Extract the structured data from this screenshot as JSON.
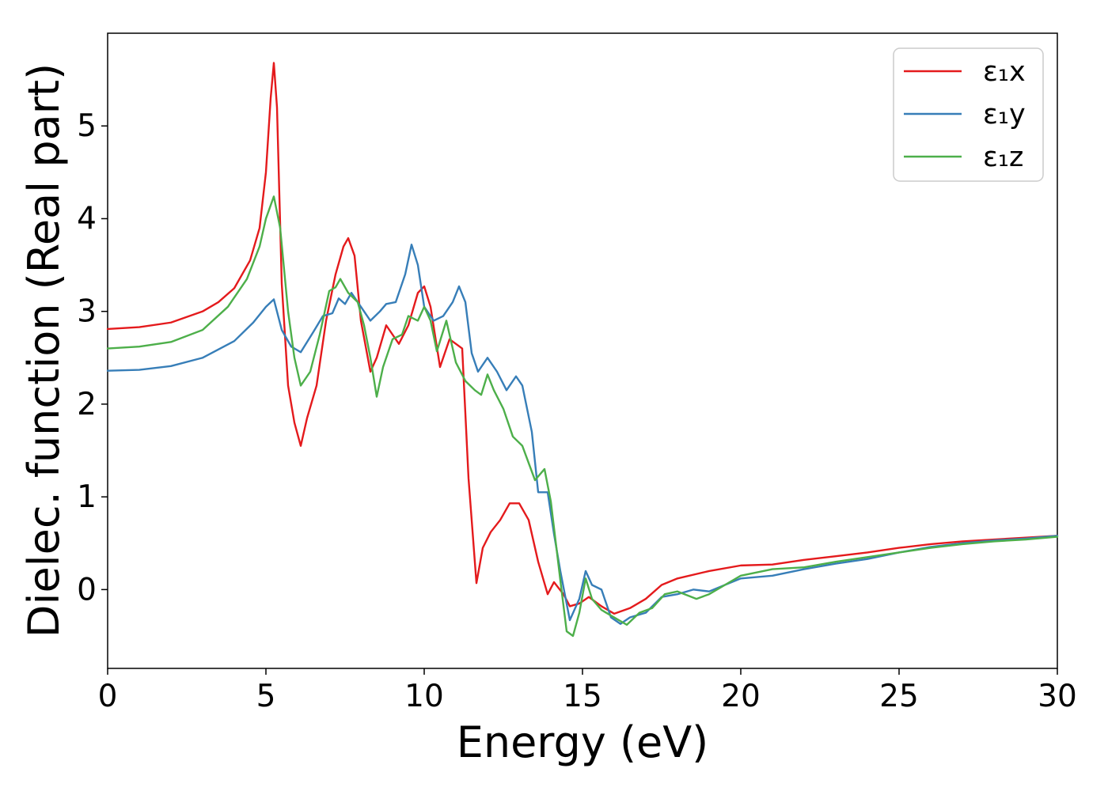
{
  "chart_data": {
    "type": "line",
    "title": "",
    "xlabel": "Energy (eV)",
    "ylabel": "Dielec. function (Real part)",
    "xlim": [
      0,
      30
    ],
    "ylim": [
      -0.85,
      6.0
    ],
    "xticks": [
      0,
      5,
      10,
      15,
      20,
      25,
      30
    ],
    "yticks": [
      0,
      1,
      2,
      3,
      4,
      5
    ],
    "grid": false,
    "legend_position": "top-right",
    "series": [
      {
        "name": "ε₁x",
        "color": "#e41a1c",
        "points": [
          [
            0,
            2.81
          ],
          [
            1,
            2.83
          ],
          [
            2,
            2.88
          ],
          [
            3,
            3.0
          ],
          [
            3.5,
            3.1
          ],
          [
            4,
            3.25
          ],
          [
            4.5,
            3.55
          ],
          [
            4.8,
            3.9
          ],
          [
            5.0,
            4.5
          ],
          [
            5.15,
            5.3
          ],
          [
            5.25,
            5.68
          ],
          [
            5.35,
            5.2
          ],
          [
            5.5,
            3.3
          ],
          [
            5.7,
            2.2
          ],
          [
            5.9,
            1.8
          ],
          [
            6.1,
            1.55
          ],
          [
            6.3,
            1.85
          ],
          [
            6.6,
            2.2
          ],
          [
            6.9,
            2.9
          ],
          [
            7.2,
            3.4
          ],
          [
            7.45,
            3.7
          ],
          [
            7.6,
            3.79
          ],
          [
            7.8,
            3.6
          ],
          [
            8.0,
            2.9
          ],
          [
            8.3,
            2.35
          ],
          [
            8.5,
            2.5
          ],
          [
            8.8,
            2.85
          ],
          [
            9.0,
            2.75
          ],
          [
            9.2,
            2.65
          ],
          [
            9.5,
            2.85
          ],
          [
            9.8,
            3.2
          ],
          [
            10.0,
            3.27
          ],
          [
            10.2,
            3.05
          ],
          [
            10.5,
            2.4
          ],
          [
            10.8,
            2.7
          ],
          [
            11.0,
            2.65
          ],
          [
            11.2,
            2.6
          ],
          [
            11.4,
            1.2
          ],
          [
            11.65,
            0.07
          ],
          [
            11.85,
            0.45
          ],
          [
            12.1,
            0.62
          ],
          [
            12.4,
            0.75
          ],
          [
            12.7,
            0.93
          ],
          [
            13.0,
            0.93
          ],
          [
            13.3,
            0.75
          ],
          [
            13.6,
            0.3
          ],
          [
            13.9,
            -0.05
          ],
          [
            14.1,
            0.08
          ],
          [
            14.4,
            -0.05
          ],
          [
            14.6,
            -0.18
          ],
          [
            14.9,
            -0.15
          ],
          [
            15.2,
            -0.08
          ],
          [
            15.6,
            -0.18
          ],
          [
            16.0,
            -0.26
          ],
          [
            16.5,
            -0.2
          ],
          [
            17.0,
            -0.1
          ],
          [
            17.5,
            0.05
          ],
          [
            18.0,
            0.12
          ],
          [
            19.0,
            0.2
          ],
          [
            20.0,
            0.26
          ],
          [
            21.0,
            0.27
          ],
          [
            22.0,
            0.32
          ],
          [
            23.0,
            0.36
          ],
          [
            24.0,
            0.4
          ],
          [
            25.0,
            0.45
          ],
          [
            26.0,
            0.49
          ],
          [
            27.0,
            0.52
          ],
          [
            28.0,
            0.54
          ],
          [
            29.0,
            0.56
          ],
          [
            30.0,
            0.58
          ]
        ]
      },
      {
        "name": "ε₁y",
        "color": "#377eb8",
        "points": [
          [
            0,
            2.36
          ],
          [
            1,
            2.37
          ],
          [
            2,
            2.41
          ],
          [
            3,
            2.5
          ],
          [
            4,
            2.68
          ],
          [
            4.6,
            2.88
          ],
          [
            5.0,
            3.05
          ],
          [
            5.25,
            3.13
          ],
          [
            5.5,
            2.8
          ],
          [
            5.8,
            2.62
          ],
          [
            6.1,
            2.56
          ],
          [
            6.5,
            2.78
          ],
          [
            6.8,
            2.95
          ],
          [
            7.1,
            2.98
          ],
          [
            7.3,
            3.14
          ],
          [
            7.5,
            3.08
          ],
          [
            7.7,
            3.2
          ],
          [
            8.0,
            3.05
          ],
          [
            8.3,
            2.9
          ],
          [
            8.6,
            3.0
          ],
          [
            8.8,
            3.08
          ],
          [
            9.1,
            3.1
          ],
          [
            9.4,
            3.4
          ],
          [
            9.6,
            3.72
          ],
          [
            9.8,
            3.5
          ],
          [
            10.0,
            3.05
          ],
          [
            10.3,
            2.9
          ],
          [
            10.6,
            2.95
          ],
          [
            10.9,
            3.1
          ],
          [
            11.1,
            3.27
          ],
          [
            11.3,
            3.1
          ],
          [
            11.5,
            2.55
          ],
          [
            11.7,
            2.35
          ],
          [
            12.0,
            2.5
          ],
          [
            12.3,
            2.35
          ],
          [
            12.6,
            2.15
          ],
          [
            12.9,
            2.3
          ],
          [
            13.1,
            2.2
          ],
          [
            13.4,
            1.7
          ],
          [
            13.6,
            1.05
          ],
          [
            13.9,
            1.05
          ],
          [
            14.1,
            0.6
          ],
          [
            14.3,
            0.2
          ],
          [
            14.6,
            -0.33
          ],
          [
            14.9,
            -0.1
          ],
          [
            15.1,
            0.2
          ],
          [
            15.3,
            0.05
          ],
          [
            15.6,
            0.0
          ],
          [
            15.9,
            -0.3
          ],
          [
            16.2,
            -0.37
          ],
          [
            16.5,
            -0.3
          ],
          [
            17.0,
            -0.25
          ],
          [
            17.5,
            -0.08
          ],
          [
            18.0,
            -0.05
          ],
          [
            18.5,
            0.0
          ],
          [
            19.0,
            -0.02
          ],
          [
            20.0,
            0.12
          ],
          [
            21.0,
            0.15
          ],
          [
            22.0,
            0.22
          ],
          [
            23.0,
            0.28
          ],
          [
            24.0,
            0.33
          ],
          [
            25.0,
            0.4
          ],
          [
            26.0,
            0.46
          ],
          [
            27.0,
            0.5
          ],
          [
            28.0,
            0.53
          ],
          [
            29.0,
            0.55
          ],
          [
            30.0,
            0.58
          ]
        ]
      },
      {
        "name": "ε₁z",
        "color": "#4daf4a",
        "points": [
          [
            0,
            2.6
          ],
          [
            1,
            2.62
          ],
          [
            2,
            2.67
          ],
          [
            3,
            2.8
          ],
          [
            3.8,
            3.05
          ],
          [
            4.4,
            3.35
          ],
          [
            4.8,
            3.7
          ],
          [
            5.0,
            4.0
          ],
          [
            5.25,
            4.24
          ],
          [
            5.45,
            3.9
          ],
          [
            5.7,
            3.0
          ],
          [
            5.9,
            2.5
          ],
          [
            6.1,
            2.2
          ],
          [
            6.4,
            2.35
          ],
          [
            6.7,
            2.75
          ],
          [
            7.0,
            3.22
          ],
          [
            7.2,
            3.26
          ],
          [
            7.35,
            3.35
          ],
          [
            7.6,
            3.2
          ],
          [
            7.9,
            3.1
          ],
          [
            8.1,
            2.85
          ],
          [
            8.3,
            2.5
          ],
          [
            8.5,
            2.08
          ],
          [
            8.7,
            2.4
          ],
          [
            9.0,
            2.7
          ],
          [
            9.3,
            2.75
          ],
          [
            9.5,
            2.95
          ],
          [
            9.8,
            2.9
          ],
          [
            10.0,
            3.05
          ],
          [
            10.2,
            2.9
          ],
          [
            10.4,
            2.57
          ],
          [
            10.7,
            2.9
          ],
          [
            11.0,
            2.45
          ],
          [
            11.3,
            2.25
          ],
          [
            11.6,
            2.15
          ],
          [
            11.8,
            2.1
          ],
          [
            12.0,
            2.32
          ],
          [
            12.2,
            2.15
          ],
          [
            12.5,
            1.95
          ],
          [
            12.8,
            1.65
          ],
          [
            13.1,
            1.55
          ],
          [
            13.5,
            1.18
          ],
          [
            13.8,
            1.3
          ],
          [
            14.0,
            0.95
          ],
          [
            14.3,
            0.1
          ],
          [
            14.5,
            -0.45
          ],
          [
            14.7,
            -0.5
          ],
          [
            14.9,
            -0.25
          ],
          [
            15.1,
            0.12
          ],
          [
            15.3,
            -0.1
          ],
          [
            15.6,
            -0.22
          ],
          [
            16.0,
            -0.3
          ],
          [
            16.4,
            -0.38
          ],
          [
            16.8,
            -0.25
          ],
          [
            17.2,
            -0.2
          ],
          [
            17.6,
            -0.05
          ],
          [
            18.0,
            -0.02
          ],
          [
            18.6,
            -0.1
          ],
          [
            19.0,
            -0.05
          ],
          [
            20.0,
            0.15
          ],
          [
            21.0,
            0.22
          ],
          [
            22.0,
            0.24
          ],
          [
            23.0,
            0.3
          ],
          [
            24.0,
            0.35
          ],
          [
            25.0,
            0.4
          ],
          [
            26.0,
            0.45
          ],
          [
            27.0,
            0.49
          ],
          [
            28.0,
            0.52
          ],
          [
            29.0,
            0.54
          ],
          [
            30.0,
            0.57
          ]
        ]
      }
    ]
  }
}
